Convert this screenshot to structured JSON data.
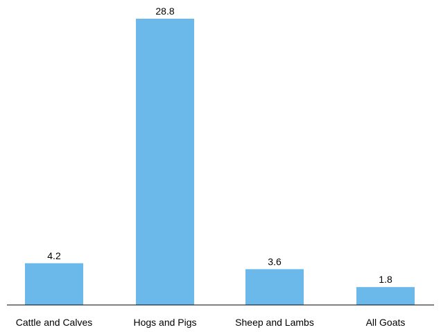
{
  "chart_data": {
    "type": "bar",
    "categories": [
      "Cattle and Calves",
      "Hogs and Pigs",
      "Sheep and Lambs",
      "All Goats"
    ],
    "values": [
      4.2,
      28.8,
      3.6,
      1.8
    ],
    "data_labels": [
      "4.2",
      "28.8",
      "3.6",
      "1.8"
    ],
    "ylim": [
      0,
      28.8
    ],
    "grid": false,
    "legend": "none",
    "bar_color": "#6ab9ea"
  }
}
